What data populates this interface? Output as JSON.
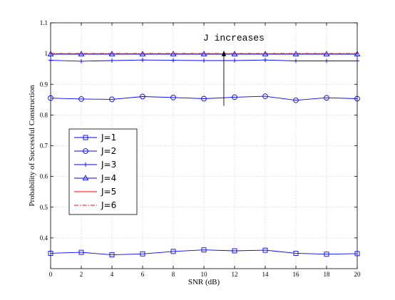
{
  "chart_data": {
    "type": "line",
    "title": "",
    "xlabel": "SNR (dB)",
    "ylabel": "Probability of Successful Construction",
    "xlim": [
      0,
      20
    ],
    "ylim": [
      0.3,
      1.1
    ],
    "xticks": [
      0,
      2,
      4,
      6,
      8,
      10,
      12,
      14,
      16,
      18,
      20
    ],
    "yticks": [
      0.4,
      0.5,
      0.6,
      0.7,
      0.8,
      0.9,
      1,
      1.1
    ],
    "xtick_labels": [
      "0",
      "2",
      "4",
      "6",
      "8",
      "10",
      "12",
      "14",
      "16",
      "18",
      "20"
    ],
    "ytick_labels": [
      "0.4",
      "0.5",
      "0.6",
      "0.7",
      "0.8",
      "0.9",
      "1",
      "1.1"
    ],
    "grid": true,
    "legend_position": "center-left",
    "x": [
      0,
      2,
      4,
      6,
      8,
      10,
      12,
      14,
      16,
      18,
      20
    ],
    "series": [
      {
        "name": "J=1",
        "marker": "square",
        "color": "#0000ff",
        "dash": "solid",
        "values": [
          0.35,
          0.353,
          0.345,
          0.348,
          0.356,
          0.361,
          0.358,
          0.36,
          0.35,
          0.347,
          0.349
        ]
      },
      {
        "name": "J=2",
        "marker": "circle",
        "color": "#0000ff",
        "dash": "solid",
        "values": [
          0.855,
          0.852,
          0.851,
          0.86,
          0.857,
          0.853,
          0.858,
          0.861,
          0.848,
          0.856,
          0.853
        ]
      },
      {
        "name": "J=3",
        "marker": "plus",
        "color": "#0000ff",
        "dash": "solid",
        "values": [
          0.978,
          0.975,
          0.977,
          0.979,
          0.978,
          0.977,
          0.977,
          0.979,
          0.976,
          0.976,
          0.976
        ]
      },
      {
        "name": "J=4",
        "marker": "triangle",
        "color": "#0000ff",
        "dash": "solid",
        "values": [
          0.998,
          0.998,
          0.998,
          0.998,
          0.998,
          0.998,
          0.998,
          0.998,
          0.998,
          0.998,
          0.998
        ]
      },
      {
        "name": "J=5",
        "marker": "none",
        "color": "#ff0000",
        "dash": "solid",
        "values": [
          0.999,
          0.999,
          0.999,
          0.999,
          0.999,
          0.999,
          0.999,
          0.999,
          0.999,
          0.999,
          0.999
        ]
      },
      {
        "name": "J=6",
        "marker": "none",
        "color": "#ff0000",
        "dash": "dashdot",
        "values": [
          1.0,
          1.0,
          1.0,
          1.0,
          1.0,
          1.0,
          1.0,
          1.0,
          1.0,
          1.0,
          1.0
        ]
      }
    ],
    "annotations": [
      {
        "text": "J increases",
        "arrow_x": 11.3,
        "arrow_from_y": 0.83,
        "arrow_to_y": 1.01
      }
    ]
  }
}
